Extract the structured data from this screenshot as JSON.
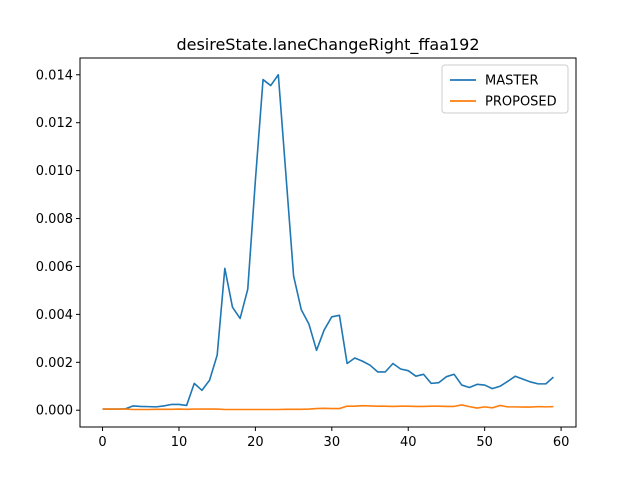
{
  "chart_data": {
    "type": "line",
    "title": "desireState.laneChangeRight_ffaa192",
    "xlabel": "",
    "ylabel": "",
    "xlim": [
      -2.95,
      61.95
    ],
    "ylim": [
      -0.0007,
      0.0147
    ],
    "xticks": [
      0,
      10,
      20,
      30,
      40,
      50,
      60
    ],
    "xtick_labels": [
      "0",
      "10",
      "20",
      "30",
      "40",
      "50",
      "60"
    ],
    "yticks": [
      0.0,
      0.002,
      0.004,
      0.006,
      0.008,
      0.01,
      0.012,
      0.014
    ],
    "ytick_labels": [
      "0.000",
      "0.002",
      "0.004",
      "0.006",
      "0.008",
      "0.010",
      "0.012",
      "0.014"
    ],
    "grid": false,
    "legend_position": "top-right",
    "x": [
      0,
      1,
      2,
      3,
      4,
      5,
      6,
      7,
      8,
      9,
      10,
      11,
      12,
      13,
      14,
      15,
      16,
      17,
      18,
      19,
      20,
      21,
      22,
      23,
      24,
      25,
      26,
      27,
      28,
      29,
      30,
      31,
      32,
      33,
      34,
      35,
      36,
      37,
      38,
      39,
      40,
      41,
      42,
      43,
      44,
      45,
      46,
      47,
      48,
      49,
      50,
      51,
      52,
      53,
      54,
      55,
      56,
      57,
      58,
      59
    ],
    "series": [
      {
        "name": "MASTER",
        "color": "#1f77b4",
        "values": [
          5e-05,
          5e-05,
          5e-05,
          6e-05,
          0.00018,
          0.00016,
          0.00015,
          0.00014,
          0.00018,
          0.00024,
          0.00024,
          0.0002,
          0.00112,
          0.00083,
          0.00125,
          0.0023,
          0.00592,
          0.0043,
          0.00383,
          0.00505,
          0.0096,
          0.0138,
          0.01355,
          0.014,
          0.0098,
          0.0056,
          0.0042,
          0.0036,
          0.0025,
          0.00335,
          0.0039,
          0.00396,
          0.00195,
          0.00218,
          0.00205,
          0.00188,
          0.0016,
          0.0016,
          0.00195,
          0.00172,
          0.00165,
          0.00142,
          0.0015,
          0.00112,
          0.00115,
          0.0014,
          0.0015,
          0.00105,
          0.00095,
          0.00108,
          0.00105,
          0.0009,
          0.001,
          0.0012,
          0.00142,
          0.0013,
          0.00118,
          0.0011,
          0.0011,
          0.00138
        ]
      },
      {
        "name": "PROPOSED",
        "color": "#ff7f0e",
        "values": [
          5e-05,
          5e-05,
          5e-05,
          5e-05,
          3e-05,
          3e-05,
          3e-05,
          4e-05,
          4e-05,
          4e-05,
          5e-05,
          4e-05,
          5e-05,
          5e-05,
          5e-05,
          5e-05,
          3e-05,
          3e-05,
          3e-05,
          3e-05,
          3e-05,
          3e-05,
          3e-05,
          3e-05,
          4e-05,
          4e-05,
          4e-05,
          5e-05,
          7e-05,
          8e-05,
          7e-05,
          7e-05,
          0.00017,
          0.00017,
          0.00019,
          0.00018,
          0.00017,
          0.00017,
          0.00016,
          0.00017,
          0.00017,
          0.00016,
          0.00016,
          0.00017,
          0.00017,
          0.00016,
          0.00016,
          0.00022,
          0.00015,
          9e-05,
          0.00014,
          0.0001,
          0.0002,
          0.00014,
          0.00014,
          0.00013,
          0.00013,
          0.00015,
          0.00014,
          0.00015
        ]
      }
    ]
  }
}
